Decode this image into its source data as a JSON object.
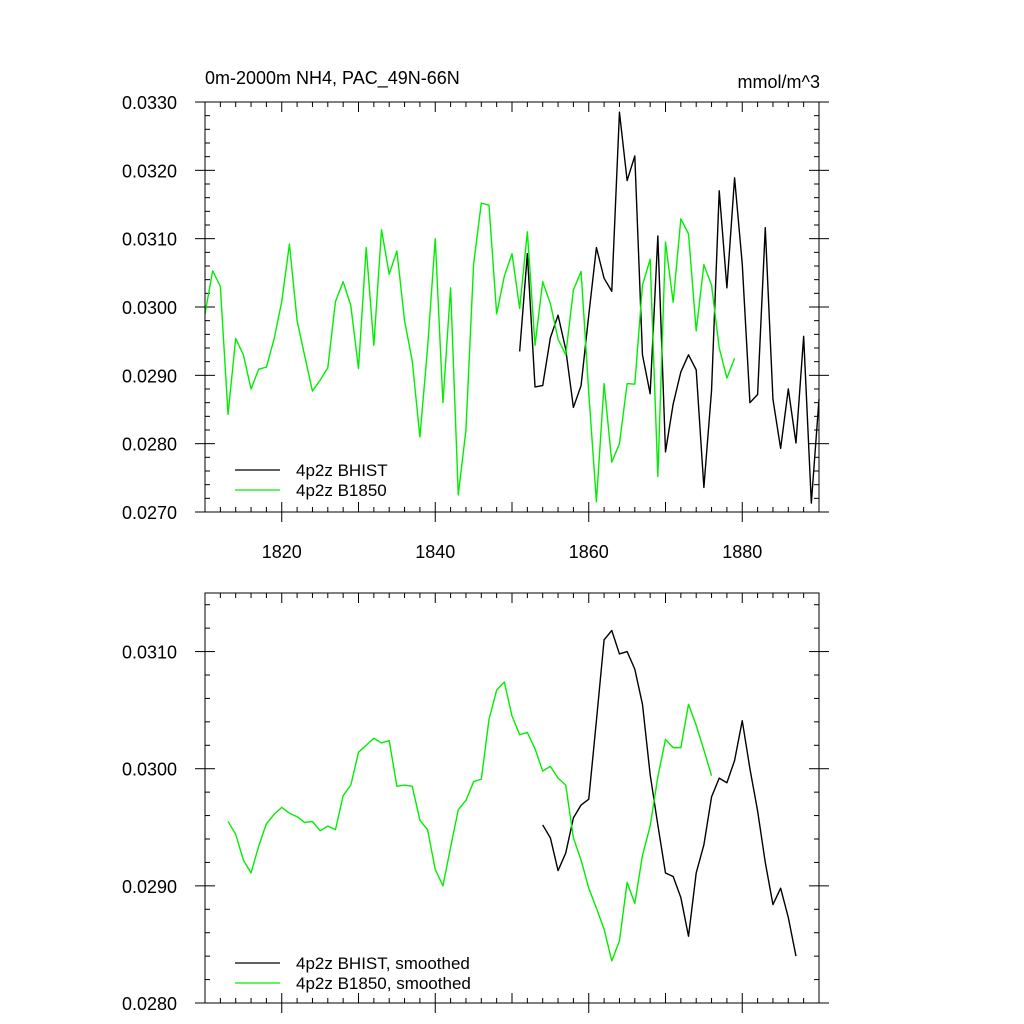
{
  "chart_data": [
    {
      "type": "line",
      "title": "0m-2000m NH4, PAC_49N-66N",
      "units": "mmol/m^3",
      "xlim": [
        1810,
        1890
      ],
      "ylim": [
        0.027,
        0.033
      ],
      "x_ticks": [
        1820,
        1840,
        1860,
        1880
      ],
      "y_ticks": [
        0.027,
        0.028,
        0.029,
        0.03,
        0.031,
        0.032,
        0.033
      ],
      "y_tick_labels": [
        "0.0270",
        "0.0280",
        "0.0290",
        "0.0300",
        "0.0310",
        "0.0320",
        "0.0330"
      ],
      "legend_position": "bottom-left",
      "series": [
        {
          "name": "4p2z BHIST",
          "color": "#000000",
          "x0": 1851,
          "values": [
            0.02935,
            0.03078,
            0.02883,
            0.02885,
            0.02955,
            0.02988,
            0.02938,
            0.02853,
            0.02885,
            0.02988,
            0.03087,
            0.03042,
            0.03023,
            0.03285,
            0.03185,
            0.03221,
            0.0293,
            0.02873,
            0.03104,
            0.02788,
            0.02858,
            0.02905,
            0.0293,
            0.02908,
            0.02736,
            0.02878,
            0.0317,
            0.03028,
            0.03189,
            0.03063,
            0.0286,
            0.02872,
            0.03116,
            0.02865,
            0.02793,
            0.0288,
            0.02801,
            0.02957,
            0.02713,
            0.02865
          ]
        },
        {
          "name": "4p2z B1850",
          "color": "#00ee00",
          "x0": 1810,
          "values": [
            0.0299,
            0.03053,
            0.0303,
            0.02843,
            0.02954,
            0.0293,
            0.0288,
            0.02909,
            0.02912,
            0.02953,
            0.03008,
            0.03092,
            0.0298,
            0.02928,
            0.02877,
            0.02893,
            0.02911,
            0.03008,
            0.03037,
            0.03002,
            0.0291,
            0.03087,
            0.02944,
            0.03113,
            0.03048,
            0.03082,
            0.0298,
            0.02921,
            0.0281,
            0.0294,
            0.031,
            0.0286,
            0.03028,
            0.02725,
            0.0282,
            0.03063,
            0.03152,
            0.03149,
            0.0299,
            0.03045,
            0.03078,
            0.02998,
            0.0311,
            0.02944,
            0.03037,
            0.03005,
            0.02953,
            0.0293,
            0.03025,
            0.03052,
            0.02875,
            0.02715,
            0.02888,
            0.02773,
            0.028,
            0.02888,
            0.02887,
            0.03032,
            0.0307,
            0.02752,
            0.03095,
            0.03007,
            0.03129,
            0.03107,
            0.02965,
            0.03062,
            0.03032,
            0.0294,
            0.02896,
            0.02925
          ]
        }
      ]
    },
    {
      "type": "line",
      "title": "",
      "xlim": [
        1810,
        1890
      ],
      "ylim": [
        0.028,
        0.0315
      ],
      "x_ticks": [
        1820,
        1840,
        1860,
        1880
      ],
      "y_ticks": [
        0.028,
        0.029,
        0.03,
        0.031
      ],
      "y_tick_labels": [
        "0.0280",
        "0.0290",
        "0.0300",
        "0.0310"
      ],
      "legend_position": "bottom-left",
      "series": [
        {
          "name": "4p2z BHIST, smoothed",
          "color": "#000000",
          "x0": 1854,
          "values": [
            0.02952,
            0.02941,
            0.02913,
            0.02928,
            0.02958,
            0.02969,
            0.02974,
            0.03041,
            0.0311,
            0.03118,
            0.03098,
            0.031,
            0.03085,
            0.03055,
            0.02995,
            0.02952,
            0.02911,
            0.02908,
            0.0289,
            0.02857,
            0.02911,
            0.02935,
            0.02976,
            0.02992,
            0.02988,
            0.03007,
            0.03041,
            0.03,
            0.02964,
            0.0292,
            0.02884,
            0.02898,
            0.02873,
            0.0284
          ]
        },
        {
          "name": "4p2z B1850, smoothed",
          "color": "#00ee00",
          "x0": 1813,
          "values": [
            0.02955,
            0.02944,
            0.02922,
            0.02911,
            0.02934,
            0.02953,
            0.02961,
            0.02967,
            0.02962,
            0.02959,
            0.02954,
            0.02955,
            0.02947,
            0.02951,
            0.02948,
            0.02977,
            0.02986,
            0.03014,
            0.0302,
            0.03026,
            0.03022,
            0.03024,
            0.02985,
            0.02986,
            0.02985,
            0.02956,
            0.02948,
            0.02914,
            0.029,
            0.02933,
            0.02965,
            0.02973,
            0.02989,
            0.02991,
            0.03042,
            0.03067,
            0.03074,
            0.03045,
            0.03029,
            0.03031,
            0.03017,
            0.02998,
            0.03002,
            0.02992,
            0.02986,
            0.02941,
            0.02922,
            0.02898,
            0.02881,
            0.02863,
            0.02836,
            0.02853,
            0.02903,
            0.02885,
            0.02926,
            0.02951,
            0.02993,
            0.03025,
            0.03018,
            0.03018,
            0.03055,
            0.03037,
            0.03016,
            0.02994
          ]
        }
      ]
    }
  ]
}
